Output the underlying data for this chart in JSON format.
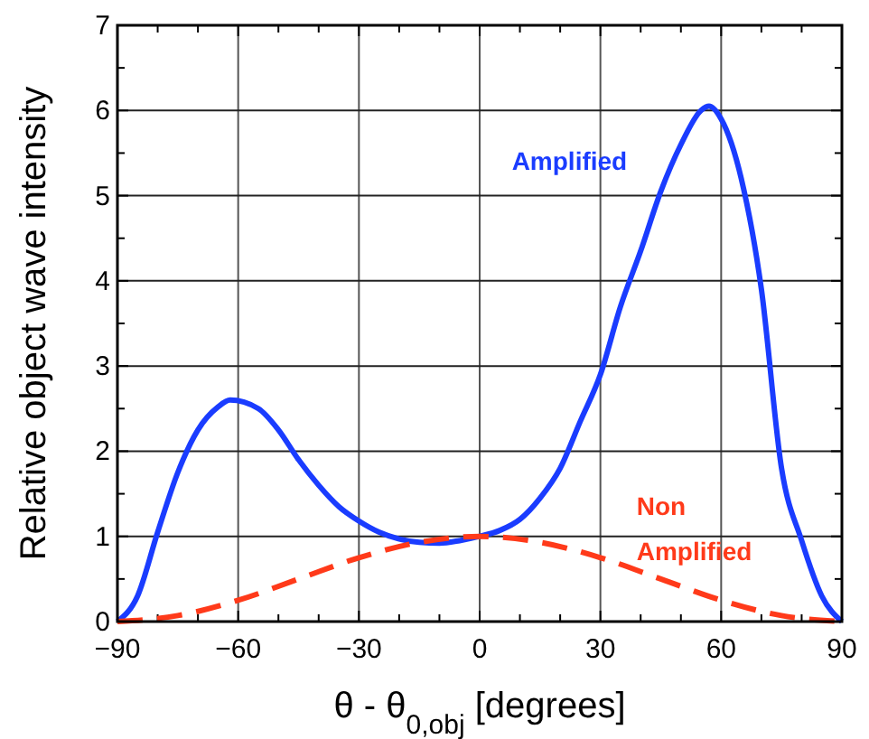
{
  "chart_data": {
    "type": "line",
    "xlabel": "θ - θ$_{0,obj}$ [degrees]",
    "ylabel": "Relative object wave intensity",
    "xlim": [
      -90,
      90
    ],
    "ylim": [
      0,
      7
    ],
    "xticks": [
      {
        "value": -90,
        "label": "−90"
      },
      {
        "value": -80,
        "label": null
      },
      {
        "value": -70,
        "label": null
      },
      {
        "value": -60,
        "label": "−60"
      },
      {
        "value": -50,
        "label": null
      },
      {
        "value": -40,
        "label": null
      },
      {
        "value": -30,
        "label": "−30"
      },
      {
        "value": -20,
        "label": null
      },
      {
        "value": -10,
        "label": null
      },
      0,
      {
        "value": 10,
        "label": null
      },
      {
        "value": 20,
        "label": null
      },
      30,
      {
        "value": 40,
        "label": null
      },
      {
        "value": 50,
        "label": null
      },
      60,
      {
        "value": 70,
        "label": null
      },
      {
        "value": 80,
        "label": null
      },
      90
    ],
    "yticks": [
      0,
      {
        "value": 0.5,
        "label": null
      },
      1,
      {
        "value": 1.5,
        "label": null
      },
      2,
      {
        "value": 2.5,
        "label": null
      },
      3,
      {
        "value": 3.5,
        "label": null
      },
      4,
      {
        "value": 4.5,
        "label": null
      },
      5,
      {
        "value": 5.5,
        "label": null
      },
      6,
      {
        "value": 6.5,
        "label": null
      },
      7
    ],
    "grid": true,
    "legend": false,
    "marker": "none",
    "series": [
      {
        "name": "Amplified",
        "color": "#1a3cff",
        "line_style": "solid",
        "x": [
          -90,
          -85,
          -80,
          -75,
          -70,
          -65,
          -62,
          -55,
          -50,
          -45,
          -40,
          -35,
          -30,
          -25,
          -20,
          -15,
          -10,
          -5,
          0,
          5,
          10,
          15,
          20,
          25,
          30,
          35,
          40,
          45,
          50,
          55,
          57,
          60,
          65,
          70,
          75,
          80,
          85,
          90
        ],
        "values": [
          0,
          0.3,
          1.05,
          1.75,
          2.25,
          2.52,
          2.6,
          2.5,
          2.25,
          1.9,
          1.6,
          1.35,
          1.18,
          1.05,
          0.97,
          0.93,
          0.92,
          0.95,
          1.0,
          1.07,
          1.2,
          1.45,
          1.8,
          2.35,
          2.9,
          3.7,
          4.35,
          5.05,
          5.6,
          6.0,
          6.05,
          5.9,
          5.2,
          3.9,
          1.8,
          0.95,
          0.3,
          0
        ]
      },
      {
        "name": "Non Amplified",
        "color": "#ff3a1a",
        "line_style": "dashed",
        "x": [
          -90,
          -75,
          -60,
          -45,
          -30,
          -15,
          0,
          15,
          30,
          45,
          60,
          75,
          90
        ],
        "values": [
          0,
          0.07,
          0.25,
          0.5,
          0.75,
          0.93,
          1,
          0.93,
          0.75,
          0.5,
          0.25,
          0.07,
          0
        ]
      }
    ]
  }
}
